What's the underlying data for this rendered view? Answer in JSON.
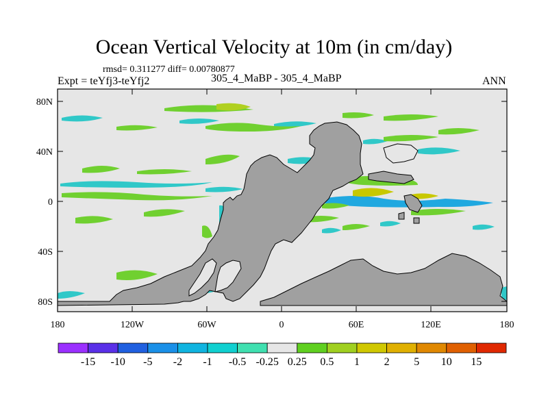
{
  "title": "Ocean Vertical Velocity at 10m (in cm/day)",
  "stats_line": "rmsd= 0.311277 diff= 0.00780877",
  "experiment_label": "Expt = teYfj3-teYfj2",
  "case_label": "305_4_MaBP - 305_4_MaBP",
  "season": "ANN",
  "axes": {
    "y_ticks": [
      "80N",
      "40N",
      "0",
      "40S",
      "80S"
    ],
    "x_ticks": [
      "180",
      "120W",
      "60W",
      "0",
      "60E",
      "120E",
      "180"
    ]
  },
  "colorbar": {
    "colors": [
      "#9b30ff",
      "#5a30e8",
      "#2060e0",
      "#1a90e8",
      "#10b4e0",
      "#10d0d0",
      "#40e0b0",
      "#e6e6e6",
      "#60d020",
      "#a0d020",
      "#d0c800",
      "#e0b000",
      "#e08800",
      "#e06000",
      "#e02800"
    ],
    "labels": [
      "-15",
      "-10",
      "-5",
      "-2",
      "-1",
      "-0.5",
      "-0.25",
      "0.25",
      "0.5",
      "1",
      "2",
      "5",
      "10",
      "15"
    ]
  },
  "legend_colors": {
    "land": "#a0a0a0",
    "ocean_background": "#e6e6e6"
  }
}
